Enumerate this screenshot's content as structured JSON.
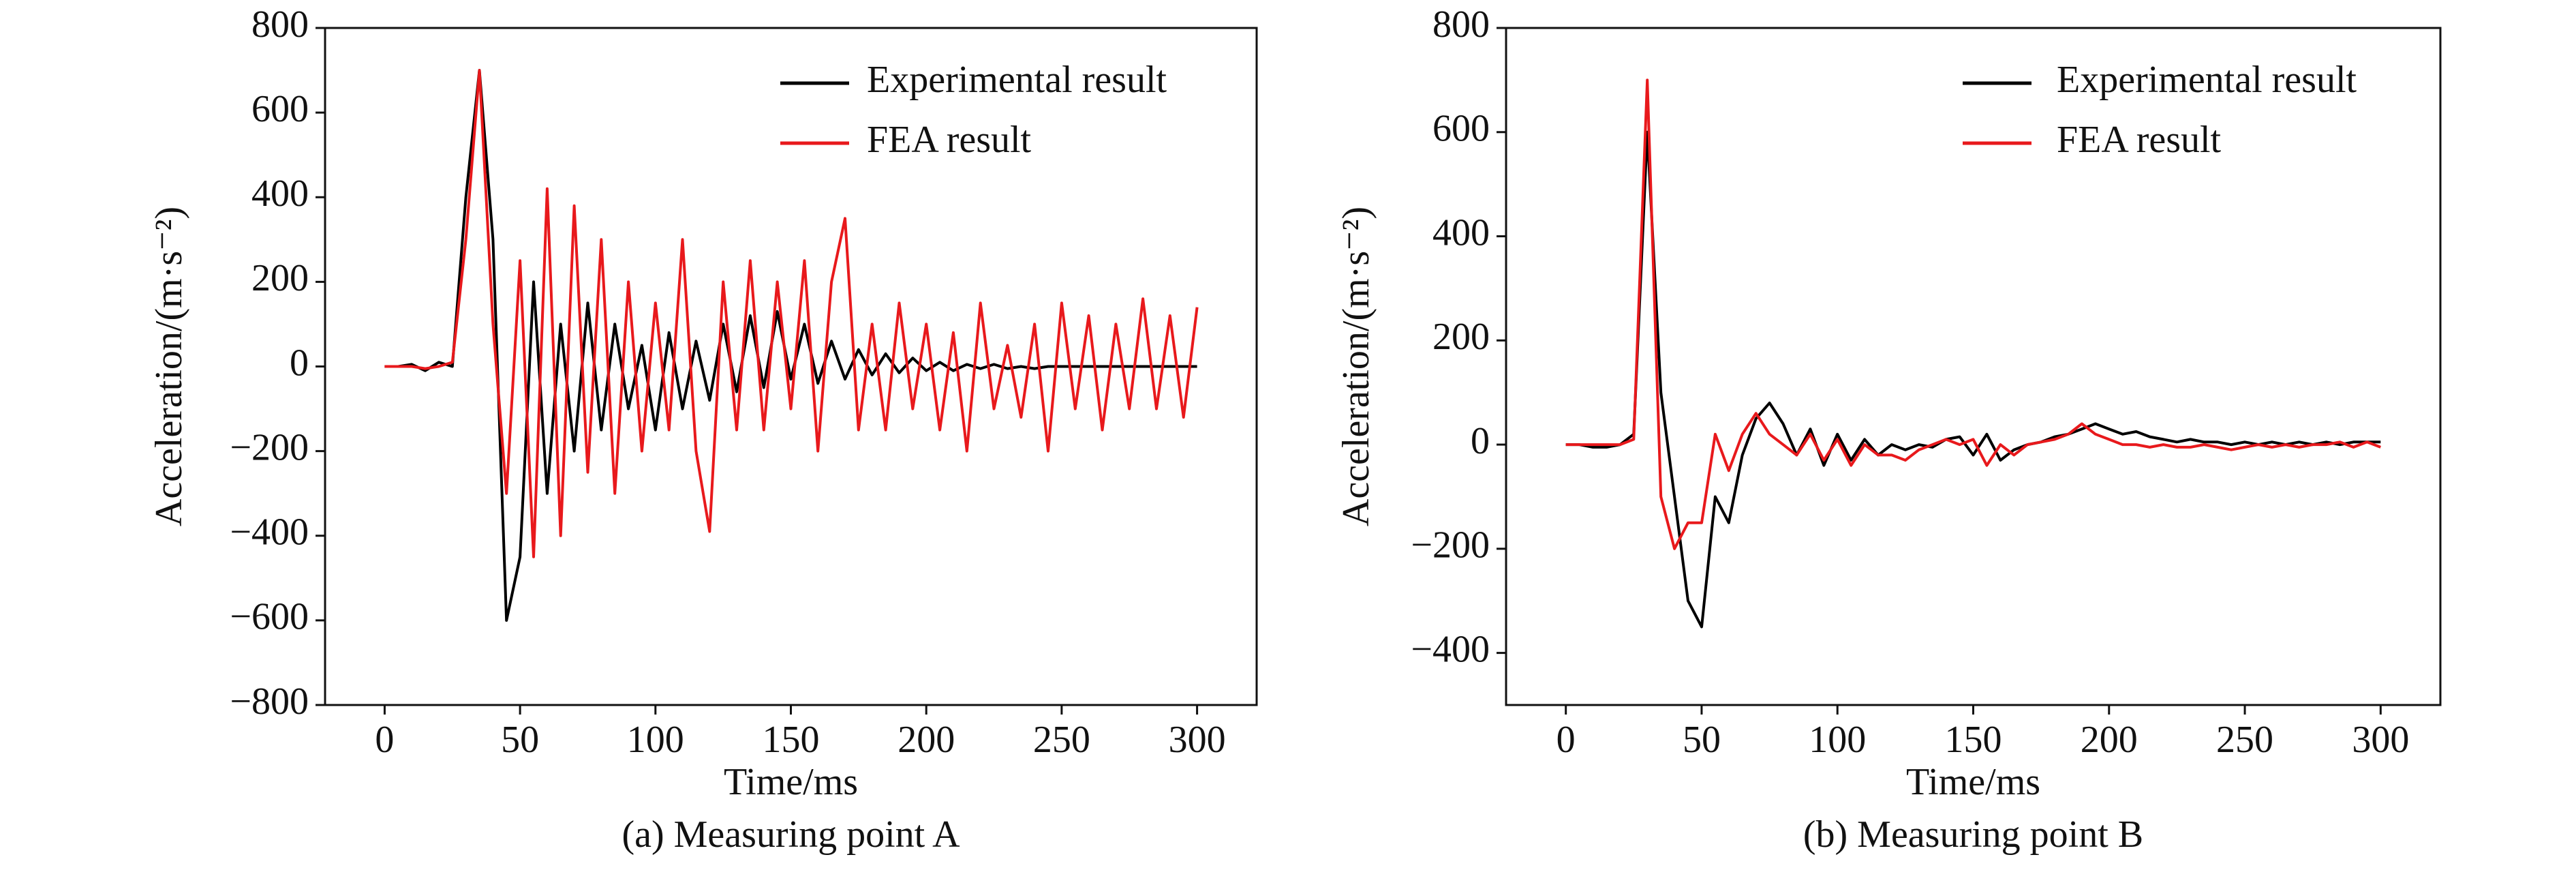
{
  "chart_data": [
    {
      "type": "line",
      "xlabel": "Time/ms",
      "ylabel": "Acceleration/(m·s⁻²)",
      "caption": "(a) Measuring point A",
      "x": [
        0,
        5,
        10,
        15,
        20,
        25,
        30,
        35,
        40,
        45,
        50,
        55,
        60,
        65,
        70,
        75,
        80,
        85,
        90,
        95,
        100,
        105,
        110,
        115,
        120,
        125,
        130,
        135,
        140,
        145,
        150,
        155,
        160,
        165,
        170,
        175,
        180,
        185,
        190,
        195,
        200,
        205,
        210,
        215,
        220,
        225,
        230,
        235,
        240,
        245,
        250,
        255,
        260,
        265,
        270,
        275,
        280,
        285,
        290,
        295,
        300
      ],
      "series": [
        {
          "name": "Experimental result",
          "color": "#000000",
          "values": [
            0,
            0,
            5,
            -10,
            10,
            0,
            400,
            700,
            300,
            -600,
            -450,
            200,
            -300,
            100,
            -200,
            150,
            -150,
            100,
            -100,
            50,
            -150,
            80,
            -100,
            60,
            -80,
            100,
            -60,
            120,
            -50,
            130,
            -30,
            100,
            -40,
            60,
            -30,
            40,
            -20,
            30,
            -15,
            20,
            -10,
            10,
            -10,
            5,
            -5,
            5,
            -5,
            0,
            -5,
            0,
            0,
            0,
            0,
            0,
            0,
            0,
            0,
            0,
            0,
            0,
            0
          ]
        },
        {
          "name": "FEA result",
          "color": "#e8191c",
          "values": [
            0,
            0,
            0,
            -5,
            0,
            10,
            300,
            700,
            100,
            -300,
            250,
            -450,
            420,
            -400,
            380,
            -250,
            300,
            -300,
            200,
            -200,
            150,
            -150,
            300,
            -200,
            -390,
            200,
            -150,
            250,
            -150,
            200,
            -100,
            250,
            -200,
            200,
            350,
            -150,
            100,
            -150,
            150,
            -100,
            100,
            -150,
            80,
            -200,
            150,
            -100,
            50,
            -120,
            100,
            -200,
            150,
            -100,
            120,
            -150,
            100,
            -100,
            160,
            -100,
            120,
            -120,
            140
          ]
        }
      ],
      "xlim": [
        -22,
        322
      ],
      "xticks": [
        0,
        50,
        100,
        150,
        200,
        250,
        300
      ],
      "ylim": [
        -800,
        800
      ],
      "yticks": [
        {
          "value": -800,
          "label": "−800"
        },
        {
          "value": -600,
          "label": "−600"
        },
        {
          "value": -400,
          "label": "−400"
        },
        {
          "value": -200,
          "label": "−200"
        },
        0,
        200,
        400,
        600,
        800
      ],
      "legend": "upper right",
      "grid": false
    },
    {
      "type": "line",
      "xlabel": "Time/ms",
      "ylabel": "Acceleration/(m·s⁻²)",
      "caption": "(b) Measuring point B",
      "x": [
        0,
        5,
        10,
        15,
        20,
        25,
        30,
        35,
        40,
        45,
        50,
        55,
        60,
        65,
        70,
        75,
        80,
        85,
        90,
        95,
        100,
        105,
        110,
        115,
        120,
        125,
        130,
        135,
        140,
        145,
        150,
        155,
        160,
        165,
        170,
        175,
        180,
        185,
        190,
        195,
        200,
        205,
        210,
        215,
        220,
        225,
        230,
        235,
        240,
        245,
        250,
        255,
        260,
        265,
        270,
        275,
        280,
        285,
        290,
        295,
        300
      ],
      "series": [
        {
          "name": "Experimental result",
          "color": "#000000",
          "values": [
            0,
            0,
            -5,
            -5,
            0,
            20,
            600,
            100,
            -100,
            -300,
            -350,
            -100,
            -150,
            -20,
            50,
            80,
            40,
            -20,
            30,
            -40,
            20,
            -30,
            10,
            -20,
            0,
            -10,
            0,
            -5,
            10,
            15,
            -20,
            20,
            -30,
            -10,
            0,
            5,
            15,
            20,
            30,
            40,
            30,
            20,
            25,
            15,
            10,
            5,
            10,
            5,
            5,
            0,
            5,
            0,
            5,
            0,
            5,
            0,
            5,
            0,
            5,
            5,
            5
          ]
        },
        {
          "name": "FEA result",
          "color": "#e8191c",
          "values": [
            0,
            0,
            0,
            0,
            0,
            10,
            700,
            -100,
            -200,
            -150,
            -150,
            20,
            -50,
            20,
            60,
            20,
            0,
            -20,
            20,
            -30,
            10,
            -40,
            0,
            -20,
            -20,
            -30,
            -10,
            0,
            10,
            0,
            10,
            -40,
            0,
            -20,
            0,
            5,
            10,
            20,
            40,
            20,
            10,
            0,
            0,
            -5,
            0,
            -5,
            -5,
            0,
            -5,
            -10,
            -5,
            0,
            -5,
            0,
            -5,
            0,
            0,
            5,
            -5,
            5,
            -5
          ]
        }
      ],
      "xlim": [
        -22,
        322
      ],
      "xticks": [
        0,
        50,
        100,
        150,
        200,
        250,
        300
      ],
      "ylim": [
        -500,
        800
      ],
      "yticks": [
        {
          "value": -400,
          "label": "−400"
        },
        {
          "value": -200,
          "label": "−200"
        },
        0,
        200,
        400,
        600,
        800
      ],
      "legend": "upper right",
      "grid": false
    }
  ]
}
